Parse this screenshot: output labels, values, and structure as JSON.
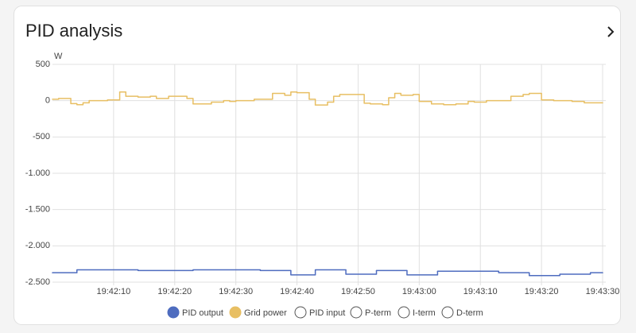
{
  "chart_data": {
    "type": "line",
    "step": true,
    "title": "PID analysis",
    "y_unit": "W",
    "xlim": [
      "19:42:00",
      "19:43:30"
    ],
    "xticks": [
      "19:42:10",
      "19:42:20",
      "19:42:30",
      "19:42:40",
      "19:42:50",
      "19:43:00",
      "19:43:10",
      "19:43:20",
      "19:43:30"
    ],
    "ylim": [
      -2500,
      500
    ],
    "yticks": [
      500,
      0,
      -500,
      {
        "value": -1000,
        "label": "-1.000"
      },
      {
        "value": -1500,
        "label": "-1.500"
      },
      {
        "value": -2000,
        "label": "-2.000"
      },
      {
        "value": -2500,
        "label": "-2.500"
      }
    ],
    "grid": true,
    "series": [
      {
        "name": "PID output",
        "color": "#4e6cbf",
        "x": [
          "19:42:00",
          "19:42:04",
          "19:42:14",
          "19:42:23",
          "19:42:34",
          "19:42:39",
          "19:42:43",
          "19:42:48",
          "19:42:53",
          "19:42:58",
          "19:43:03",
          "19:43:13",
          "19:43:18",
          "19:43:23",
          "19:43:28"
        ],
        "values": [
          -2370,
          -2330,
          -2340,
          -2330,
          -2340,
          -2400,
          -2330,
          -2390,
          -2340,
          -2400,
          -2350,
          -2370,
          -2410,
          -2390,
          -2370
        ]
      },
      {
        "name": "Grid power",
        "color": "#e8bf63",
        "x": [
          "19:42:00",
          "19:42:01",
          "19:42:03",
          "19:42:04",
          "19:42:05",
          "19:42:06",
          "19:42:09",
          "19:42:11",
          "19:42:12",
          "19:42:14",
          "19:42:16",
          "19:42:17",
          "19:42:19",
          "19:42:22",
          "19:42:23",
          "19:42:26",
          "19:42:28",
          "19:42:29",
          "19:42:30",
          "19:42:33",
          "19:42:36",
          "19:42:38",
          "19:42:39",
          "19:42:40",
          "19:42:42",
          "19:42:43",
          "19:42:45",
          "19:42:46",
          "19:42:47",
          "19:42:51",
          "19:42:52",
          "19:42:54",
          "19:42:55",
          "19:42:56",
          "19:42:57",
          "19:42:59",
          "19:43:00",
          "19:43:02",
          "19:43:04",
          "19:43:06",
          "19:43:08",
          "19:43:09",
          "19:43:11",
          "19:43:15",
          "19:43:17",
          "19:43:18",
          "19:43:20",
          "19:43:22",
          "19:43:25",
          "19:43:27"
        ],
        "values": [
          20,
          30,
          -40,
          -55,
          -30,
          0,
          10,
          120,
          60,
          50,
          60,
          30,
          60,
          30,
          -45,
          -20,
          0,
          -10,
          0,
          20,
          100,
          75,
          120,
          110,
          20,
          -60,
          -20,
          60,
          85,
          -35,
          -45,
          -55,
          40,
          100,
          75,
          85,
          -10,
          -45,
          -55,
          -45,
          -10,
          -20,
          0,
          60,
          85,
          100,
          10,
          0,
          -10,
          -30
        ]
      },
      {
        "name": "PID input",
        "hidden": true
      },
      {
        "name": "P-term",
        "hidden": true
      },
      {
        "name": "I-term",
        "hidden": true
      },
      {
        "name": "D-term",
        "hidden": true
      }
    ]
  }
}
